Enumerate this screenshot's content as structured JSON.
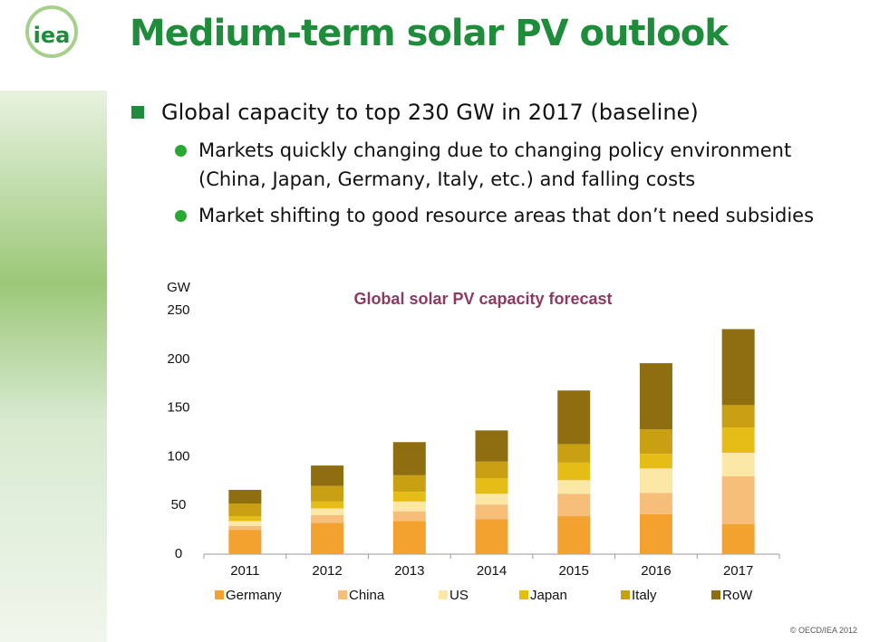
{
  "header": {
    "logo": "iea",
    "title": "Medium-term solar PV outlook"
  },
  "points": [
    "Global capacity to top 230 GW in 2017 (baseline)",
    "Markets quickly changing due to changing policy environment (China, Japan, Germany, Italy, etc.) and falling costs",
    "Market shifting to good resource areas that don’t need subsidies"
  ],
  "footer": "© OECD/IEA 2012",
  "chart_data": {
    "type": "stacked-bar",
    "title": "Global solar PV capacity forecast",
    "y_label": "GW",
    "categories": [
      "2011",
      "2012",
      "2013",
      "2014",
      "2015",
      "2016",
      "2017"
    ],
    "series": [
      {
        "name": "Germany",
        "color": "#f3a12f",
        "values": [
          25,
          32,
          34,
          36,
          39,
          41,
          31
        ]
      },
      {
        "name": "China",
        "color": "#f7be7a",
        "values": [
          4,
          8,
          10,
          15,
          23,
          22,
          49
        ]
      },
      {
        "name": "US",
        "color": "#fbe8a6",
        "values": [
          5,
          7,
          10,
          11,
          14,
          25,
          24
        ]
      },
      {
        "name": "Japan",
        "color": "#e6bd17",
        "values": [
          5,
          7,
          10,
          16,
          18,
          15,
          26
        ]
      },
      {
        "name": "Italy",
        "color": "#c8a012",
        "values": [
          13,
          16,
          17,
          17,
          19,
          25,
          23
        ]
      },
      {
        "name": "RoW",
        "color": "#8f6e10",
        "values": [
          14,
          21,
          34,
          32,
          55,
          68,
          78
        ]
      }
    ],
    "ylim": [
      0,
      250
    ],
    "yticks": [
      0,
      50,
      100,
      150,
      200,
      250
    ],
    "grid": false
  }
}
